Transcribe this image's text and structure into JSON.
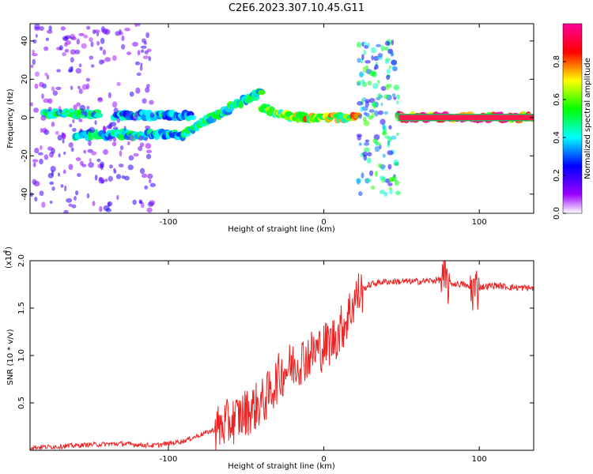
{
  "title": "C2E6.2023.307.10.45.G11",
  "chart_data": [
    {
      "type": "heatmap",
      "xlabel": "Height of straight line (km)",
      "ylabel": "Frequency (Hz)",
      "xlim": [
        -189,
        135
      ],
      "ylim": [
        -50,
        49
      ],
      "xticks": [
        -100,
        0,
        100
      ],
      "yticks": [
        -40,
        -20,
        0,
        20,
        40
      ],
      "colorbar": {
        "label": "Normalized spectral amplitude",
        "range": [
          0,
          1
        ],
        "ticks": [
          "0.0",
          "0.2",
          "0.4",
          "0.6",
          "0.8"
        ],
        "colors": [
          "#ffffff",
          "#9900ff",
          "#0000ff",
          "#00ffff",
          "#00ff00",
          "#ffff00",
          "#ff0000",
          "#ff0099"
        ]
      },
      "features": [
        {
          "kind": "band",
          "x": [
            -180,
            -145
          ],
          "y": [
            2,
            2
          ],
          "amp": 0.5
        },
        {
          "kind": "band",
          "x": [
            -160,
            -90
          ],
          "y": [
            -9,
            -9
          ],
          "amp": 0.45
        },
        {
          "kind": "band",
          "x": [
            -135,
            -85
          ],
          "y": [
            1,
            1
          ],
          "amp": 0.4
        },
        {
          "kind": "band",
          "x": [
            -90,
            -40
          ],
          "y": [
            -8,
            14
          ],
          "amp": 0.5
        },
        {
          "kind": "band",
          "x": [
            -40,
            -20
          ],
          "y": [
            5,
            0
          ],
          "amp": 0.6
        },
        {
          "kind": "band",
          "x": [
            -20,
            22
          ],
          "y": [
            0,
            0
          ],
          "amp": 0.7
        },
        {
          "kind": "band",
          "x": [
            48,
            135
          ],
          "y": [
            0,
            0
          ],
          "amp": 0.95
        },
        {
          "kind": "burst",
          "x": [
            22,
            48
          ],
          "y": [
            -40,
            40
          ],
          "amp": 0.4
        },
        {
          "kind": "scatter",
          "x": [
            -189,
            -110
          ],
          "y": [
            -50,
            49
          ],
          "amp": 0.15
        }
      ]
    },
    {
      "type": "line",
      "xlabel": "Height of straight line (km)",
      "ylabel": "SNR (10 * v/v)",
      "scale_label": "(x10",
      "scale_exp": "4",
      "xlim": [
        -189,
        135
      ],
      "ylim": [
        0,
        20000
      ],
      "xticks": [
        -100,
        0,
        100
      ],
      "yticks": [
        5000,
        10000,
        15000,
        20000
      ],
      "ytick_labels": [
        "0.5",
        "1.0",
        "1.5",
        "2.0"
      ],
      "color": "#ee2222",
      "series": [
        {
          "x": [
            -189,
            -170,
            -150,
            -130,
            -110,
            -100,
            -90,
            -80,
            -70,
            -60,
            -50,
            -40,
            -35,
            -30,
            -25,
            -20,
            -15,
            -10,
            -5,
            0,
            5,
            10,
            15,
            20,
            25,
            30,
            35,
            40,
            50,
            60,
            70,
            75,
            80,
            90,
            95,
            100,
            110,
            120,
            135
          ],
          "y": [
            300,
            400,
            600,
            700,
            500,
            700,
            1000,
            1600,
            2200,
            3000,
            4000,
            5000,
            6000,
            7500,
            8500,
            9000,
            9500,
            10000,
            10500,
            11000,
            11500,
            12500,
            14000,
            16000,
            17000,
            17500,
            17700,
            17800,
            17800,
            17800,
            17900,
            18000,
            17600,
            17500,
            17000,
            17200,
            17400,
            17200,
            17100
          ]
        }
      ]
    }
  ]
}
